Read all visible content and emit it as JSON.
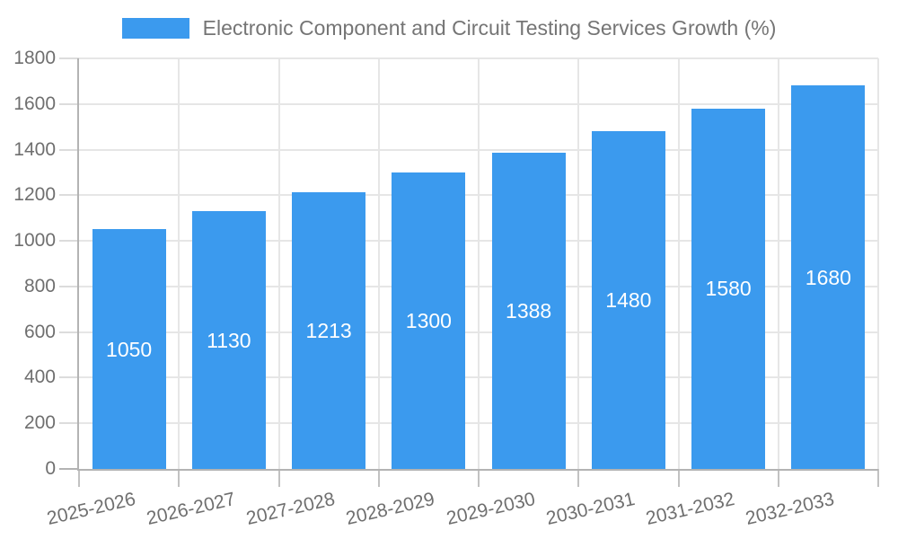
{
  "chart_data": {
    "type": "bar",
    "title": "Electronic Component and Circuit Testing Services Growth (%)",
    "categories": [
      "2025-2026",
      "2026-2027",
      "2027-2028",
      "2028-2029",
      "2029-2030",
      "2030-2031",
      "2031-2032",
      "2032-2033"
    ],
    "values": [
      1050,
      1130,
      1213,
      1300,
      1388,
      1480,
      1580,
      1680
    ],
    "xlabel": "",
    "ylabel": "",
    "ylim": [
      0,
      1800
    ],
    "ytick_step": 200,
    "yticks": [
      0,
      200,
      400,
      600,
      800,
      1000,
      1200,
      1400,
      1600,
      1800
    ],
    "grid": true,
    "legend_position": "top",
    "bar_labels_shown": true
  },
  "colors": {
    "bar": "#3b9aee",
    "bar_value_label": "#ffffff",
    "grid_line": "#e6e6e6",
    "axis_line": "#b3b3b3",
    "y_tick_mark": "#dcdcdc",
    "x_tick_mark": "#c2c2c2",
    "tick_label_text": "#6f6f6f",
    "title_text": "#757575",
    "background": "#ffffff"
  }
}
